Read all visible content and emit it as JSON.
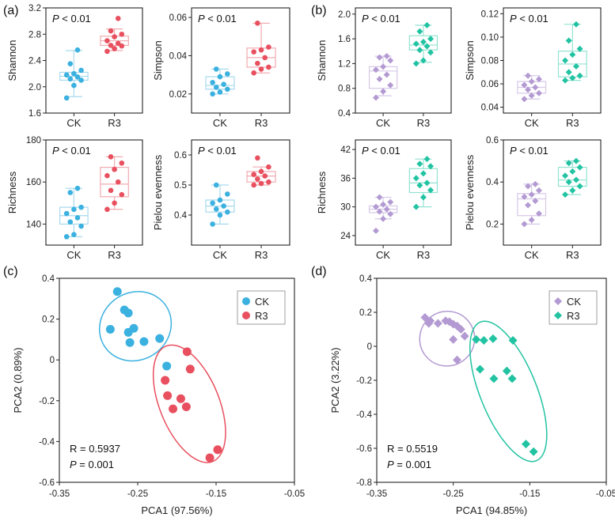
{
  "colors": {
    "ck": "#3bb1e0",
    "r3": "#e8505f",
    "ck_pale": "#a6d9ee",
    "r3_pale": "#f1aab1",
    "ck_b": "#b39ad2",
    "r3_b": "#22c3a2",
    "ck_b_pale": "#d6c8e8",
    "r3_b_pale": "#92e2d1"
  },
  "chart_data": [
    {
      "type": "box",
      "panel": "(a)",
      "ylabel": "Shannon",
      "annotation": "P < 0.01",
      "categories": [
        "CK",
        "R3"
      ],
      "ylim": [
        1.6,
        3.2
      ],
      "yticks": [
        1.6,
        2.0,
        2.4,
        2.8,
        3.2
      ],
      "ytick_labels": [
        "1.6",
        "2.0",
        "2.4",
        "2.8",
        "3.2"
      ],
      "groups": [
        {
          "name": "CK",
          "min": 1.85,
          "q1": 2.1,
          "median": 2.16,
          "q3": 2.22,
          "max": 2.55,
          "points": [
            1.83,
            2.02,
            2.1,
            2.12,
            2.15,
            2.18,
            2.2,
            2.25,
            2.35,
            2.56
          ]
        },
        {
          "name": "R3",
          "min": 2.55,
          "q1": 2.63,
          "median": 2.7,
          "q3": 2.77,
          "max": 2.88,
          "points": [
            2.54,
            2.58,
            2.62,
            2.63,
            2.66,
            2.7,
            2.76,
            2.8,
            2.85,
            3.04
          ]
        }
      ]
    },
    {
      "type": "box",
      "panel": "(a)",
      "ylabel": "Simpson",
      "annotation": "P < 0.01",
      "categories": [
        "CK",
        "R3"
      ],
      "ylim": [
        0.01,
        0.065
      ],
      "yticks": [
        0.02,
        0.04,
        0.06
      ],
      "ytick_labels": [
        "0.02",
        "0.04",
        "0.06"
      ],
      "groups": [
        {
          "name": "CK",
          "min": 0.02,
          "q1": 0.0225,
          "median": 0.0245,
          "q3": 0.029,
          "max": 0.033,
          "points": [
            0.02,
            0.021,
            0.0225,
            0.0235,
            0.025,
            0.026,
            0.029,
            0.0305,
            0.033
          ]
        },
        {
          "name": "R3",
          "min": 0.031,
          "q1": 0.034,
          "median": 0.039,
          "q3": 0.044,
          "max": 0.057,
          "points": [
            0.031,
            0.033,
            0.034,
            0.036,
            0.039,
            0.042,
            0.043,
            0.0445,
            0.057
          ]
        }
      ]
    },
    {
      "type": "box",
      "panel": "(a)",
      "ylabel": "Richness",
      "annotation": "P < 0.01",
      "categories": [
        "CK",
        "R3"
      ],
      "ylim": [
        130,
        180
      ],
      "yticks": [
        140,
        160,
        180
      ],
      "ytick_labels": [
        "140",
        "160",
        "180"
      ],
      "groups": [
        {
          "name": "CK",
          "min": 134,
          "q1": 140,
          "median": 144,
          "q3": 148,
          "max": 157,
          "points": [
            134,
            135,
            139,
            141,
            143,
            145,
            147,
            148,
            155,
            157
          ]
        },
        {
          "name": "R3",
          "min": 147,
          "q1": 153,
          "median": 159,
          "q3": 167,
          "max": 172,
          "points": [
            147,
            150,
            154,
            156,
            160,
            163,
            166,
            169,
            172
          ]
        }
      ]
    },
    {
      "type": "box",
      "panel": "(a)",
      "ylabel": "Pielou evenness",
      "annotation": "P < 0.01",
      "categories": [
        "CK",
        "R3"
      ],
      "ylim": [
        0.3,
        0.65
      ],
      "yticks": [
        0.4,
        0.5,
        0.6
      ],
      "ytick_labels": [
        "0.4",
        "0.5",
        "0.6"
      ],
      "groups": [
        {
          "name": "CK",
          "min": 0.37,
          "q1": 0.41,
          "median": 0.43,
          "q3": 0.45,
          "max": 0.5,
          "points": [
            0.37,
            0.4,
            0.41,
            0.42,
            0.43,
            0.44,
            0.45,
            0.47,
            0.5
          ]
        },
        {
          "name": "R3",
          "min": 0.5,
          "q1": 0.51,
          "median": 0.53,
          "q3": 0.545,
          "max": 0.56,
          "points": [
            0.5,
            0.505,
            0.51,
            0.52,
            0.53,
            0.535,
            0.545,
            0.56,
            0.59
          ]
        }
      ]
    },
    {
      "type": "box",
      "panel": "(b)",
      "ylabel": "Shannon",
      "annotation": "P < 0.01",
      "categories": [
        "CK",
        "R3"
      ],
      "ylim": [
        0.4,
        2.1
      ],
      "yticks": [
        0.4,
        0.8,
        1.2,
        1.6,
        2.0
      ],
      "ytick_labels": [
        "0.4",
        "0.8",
        "1.2",
        "1.6",
        "2.0"
      ],
      "groups": [
        {
          "name": "CK",
          "min": 0.68,
          "q1": 0.8,
          "median": 1.08,
          "q3": 1.15,
          "max": 1.32,
          "points": [
            0.65,
            0.75,
            0.85,
            0.95,
            1.02,
            1.1,
            1.15,
            1.25,
            1.3,
            1.32
          ]
        },
        {
          "name": "R3",
          "min": 1.22,
          "q1": 1.42,
          "median": 1.5,
          "q3": 1.65,
          "max": 1.82,
          "points": [
            1.2,
            1.25,
            1.38,
            1.42,
            1.48,
            1.52,
            1.55,
            1.6,
            1.72,
            1.82
          ]
        }
      ]
    },
    {
      "type": "box",
      "panel": "(b)",
      "ylabel": "Simpson",
      "annotation": "P < 0.01",
      "categories": [
        "CK",
        "R3"
      ],
      "ylim": [
        0.035,
        0.125
      ],
      "yticks": [
        0.04,
        0.06,
        0.08,
        0.1,
        0.12
      ],
      "ytick_labels": [
        "0.04",
        "0.06",
        "0.08",
        "0.10",
        "0.12"
      ],
      "groups": [
        {
          "name": "CK",
          "min": 0.047,
          "q1": 0.052,
          "median": 0.057,
          "q3": 0.062,
          "max": 0.067,
          "points": [
            0.047,
            0.05,
            0.052,
            0.055,
            0.057,
            0.059,
            0.062,
            0.064,
            0.067
          ]
        },
        {
          "name": "R3",
          "min": 0.063,
          "q1": 0.066,
          "median": 0.077,
          "q3": 0.088,
          "max": 0.111,
          "points": [
            0.063,
            0.065,
            0.067,
            0.07,
            0.075,
            0.08,
            0.085,
            0.09,
            0.097,
            0.111
          ]
        }
      ]
    },
    {
      "type": "box",
      "panel": "(b)",
      "ylabel": "Richness",
      "annotation": "P < 0.01",
      "categories": [
        "CK",
        "R3"
      ],
      "ylim": [
        22,
        44
      ],
      "yticks": [
        24,
        30,
        36,
        42
      ],
      "ytick_labels": [
        "24",
        "30",
        "36",
        "42"
      ],
      "groups": [
        {
          "name": "CK",
          "min": 27.5,
          "q1": 28.8,
          "median": 29.5,
          "q3": 30.2,
          "max": 32,
          "points": [
            25,
            27.5,
            28.5,
            29,
            29.5,
            30,
            30.5,
            31,
            32
          ]
        },
        {
          "name": "R3",
          "min": 30,
          "q1": 33,
          "median": 35,
          "q3": 38,
          "max": 40,
          "points": [
            30,
            32,
            33.5,
            34.5,
            35,
            36,
            37,
            38.5,
            39,
            40
          ]
        }
      ]
    },
    {
      "type": "box",
      "panel": "(b)",
      "ylabel": "Pielou evenness",
      "annotation": "P < 0.01",
      "categories": [
        "CK",
        "R3"
      ],
      "ylim": [
        0.1,
        0.6
      ],
      "yticks": [
        0.2,
        0.4,
        0.6
      ],
      "ytick_labels": [
        "0.2",
        "0.4",
        "0.6"
      ],
      "groups": [
        {
          "name": "CK",
          "min": 0.2,
          "q1": 0.24,
          "median": 0.32,
          "q3": 0.345,
          "max": 0.39,
          "points": [
            0.2,
            0.22,
            0.25,
            0.29,
            0.31,
            0.33,
            0.34,
            0.36,
            0.38,
            0.39
          ]
        },
        {
          "name": "R3",
          "min": 0.34,
          "q1": 0.38,
          "median": 0.41,
          "q3": 0.47,
          "max": 0.5,
          "points": [
            0.34,
            0.36,
            0.38,
            0.4,
            0.41,
            0.43,
            0.45,
            0.47,
            0.49,
            0.5
          ]
        }
      ]
    },
    {
      "type": "scatter",
      "panel": "(c)",
      "xlabel": "PCA1 (97.56%)",
      "ylabel": "PCA2 (0.89%)",
      "xlim": [
        -0.35,
        -0.05
      ],
      "ylim": [
        -0.6,
        0.4
      ],
      "xticks": [
        -0.35,
        -0.25,
        -0.15,
        -0.05
      ],
      "xtick_labels": [
        "-0.35",
        "-0.25",
        "-0.15",
        "-0.05"
      ],
      "yticks": [
        -0.6,
        -0.4,
        -0.2,
        0,
        0.2,
        0.4
      ],
      "ytick_labels": [
        "-0.6",
        "-0.4",
        "-0.2",
        "0",
        "0.2",
        "0.4"
      ],
      "legend": [
        "CK",
        "R3"
      ],
      "legend_position": "top-right",
      "marker": "circle",
      "stat_r": "R = 0.5937",
      "stat_p_label": "P",
      "stat_p_value": " = 0.001",
      "series": [
        {
          "name": "CK",
          "points": [
            [
              -0.276,
              0.335
            ],
            [
              -0.267,
              0.245
            ],
            [
              -0.262,
              0.23
            ],
            [
              -0.255,
              0.155
            ],
            [
              -0.242,
              0.09
            ],
            [
              -0.222,
              0.105
            ],
            [
              -0.262,
              0.135
            ],
            [
              -0.285,
              0.15
            ],
            [
              -0.26,
              0.085
            ],
            [
              -0.213,
              -0.03
            ]
          ]
        },
        {
          "name": "R3",
          "points": [
            [
              -0.187,
              0.04
            ],
            [
              -0.183,
              -0.045
            ],
            [
              -0.215,
              -0.1
            ],
            [
              -0.212,
              -0.175
            ],
            [
              -0.195,
              -0.19
            ],
            [
              -0.188,
              -0.23
            ],
            [
              -0.205,
              -0.24
            ],
            [
              -0.148,
              -0.44
            ],
            [
              -0.158,
              -0.48
            ]
          ]
        }
      ],
      "ellipses": [
        {
          "name": "CK",
          "cx": -0.253,
          "cy": 0.165,
          "rx": 0.047,
          "ry": 0.165,
          "angle_deg": 34
        },
        {
          "name": "R3",
          "cx": -0.184,
          "cy": -0.215,
          "rx": 0.038,
          "ry": 0.305,
          "angle_deg": 22
        }
      ]
    },
    {
      "type": "scatter",
      "panel": "(d)",
      "xlabel": "PCA1 (94.85%)",
      "ylabel": "PCA2 (3.22%)",
      "xlim": [
        -0.35,
        -0.05
      ],
      "ylim": [
        -0.8,
        0.4
      ],
      "xticks": [
        -0.35,
        -0.25,
        -0.15,
        -0.05
      ],
      "xtick_labels": [
        "-0.35",
        "-0.25",
        "-0.15",
        "-0.05"
      ],
      "yticks": [
        -0.8,
        -0.6,
        -0.4,
        -0.2,
        0,
        0.2,
        0.4
      ],
      "ytick_labels": [
        "-0.8",
        "-0.6",
        "-0.4",
        "-0.2",
        "0",
        "0.2",
        "0.4"
      ],
      "legend": [
        "CK",
        "R3"
      ],
      "legend_position": "top-right",
      "marker": "diamond",
      "stat_r": "R = 0.5519",
      "stat_p_label": "P",
      "stat_p_value": " = 0.001",
      "series": [
        {
          "name": "CK",
          "points": [
            [
              -0.287,
              0.17
            ],
            [
              -0.282,
              0.135
            ],
            [
              -0.28,
              0.15
            ],
            [
              -0.27,
              0.135
            ],
            [
              -0.26,
              0.15
            ],
            [
              -0.255,
              0.145
            ],
            [
              -0.25,
              0.13
            ],
            [
              -0.245,
              0.12
            ],
            [
              -0.24,
              0.1
            ],
            [
              -0.235,
              0.06
            ],
            [
              -0.25,
              0.04
            ],
            [
              -0.245,
              -0.08
            ]
          ]
        },
        {
          "name": "R3",
          "points": [
            [
              -0.22,
              0.04
            ],
            [
              -0.21,
              0.035
            ],
            [
              -0.198,
              0.045
            ],
            [
              -0.172,
              0.035
            ],
            [
              -0.215,
              -0.135
            ],
            [
              -0.197,
              -0.19
            ],
            [
              -0.18,
              -0.145
            ],
            [
              -0.173,
              -0.19
            ],
            [
              -0.155,
              -0.575
            ],
            [
              -0.145,
              -0.62
            ]
          ]
        }
      ],
      "ellipses": [
        {
          "name": "CK",
          "cx": -0.258,
          "cy": 0.045,
          "rx": 0.036,
          "ry": 0.16,
          "angle_deg": 40
        },
        {
          "name": "R3",
          "cx": -0.178,
          "cy": -0.265,
          "rx": 0.037,
          "ry": 0.44,
          "angle_deg": 22
        }
      ]
    }
  ],
  "labels": {
    "panel_a": "(a)",
    "panel_b": "(b)",
    "panel_c": "(c)",
    "panel_d": "(d)"
  }
}
